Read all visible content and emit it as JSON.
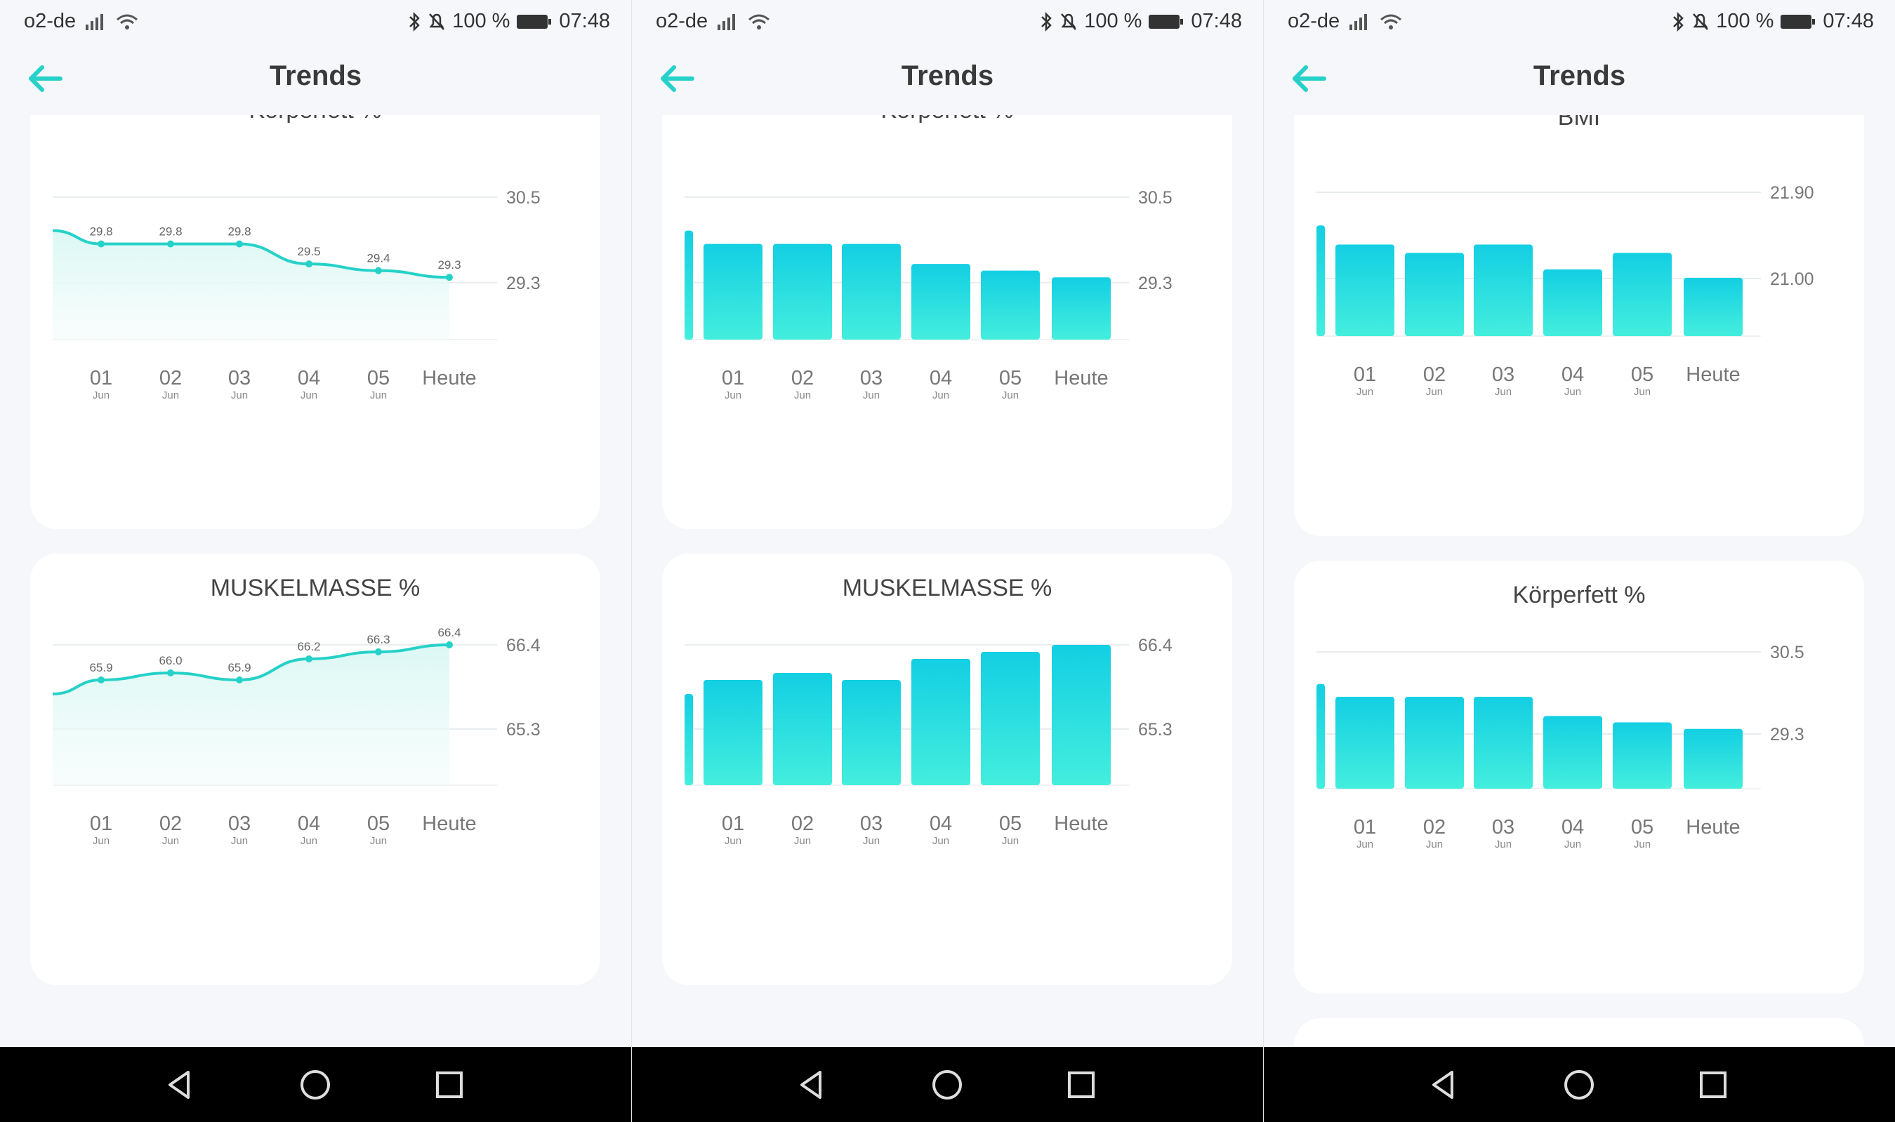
{
  "colors": {
    "accent": "#25d1c8",
    "bar_top": "#13cfe3",
    "bar_bottom": "#44eedd",
    "grid": "#e8ecef",
    "text": "#333333",
    "muted": "#888888"
  },
  "status": {
    "carrier": "o2-de",
    "battery": "100 %",
    "time_left": "07:48",
    "time_mid": "07:48",
    "time_right": "07:48"
  },
  "screens": [
    {
      "title": "Trends",
      "back_icon": "arrow-left-icon"
    },
    {
      "title": "Trends",
      "back_icon": "arrow-left-icon"
    },
    {
      "title": "Trends",
      "back_icon": "arrow-left-icon"
    }
  ],
  "nav": {
    "back": "triangle-back-icon",
    "home": "circle-home-icon",
    "recents": "square-recents-icon"
  },
  "chart_data": [
    {
      "type": "line",
      "title": "Körperfett %",
      "categories": [
        "01",
        "02",
        "03",
        "04",
        "05",
        "Heute"
      ],
      "sublabels": [
        "Jun",
        "Jun",
        "Jun",
        "Jun",
        "Jun",
        ""
      ],
      "values": [
        29.8,
        29.8,
        29.8,
        29.5,
        29.4,
        29.3
      ],
      "value_labels": [
        "29.8",
        "29.8",
        "29.8",
        "29.5",
        "29.4",
        "29.3"
      ],
      "y_ticks": [
        "30.5",
        "29.3"
      ],
      "ylim": [
        28.9,
        30.5
      ],
      "lead_value": 30.0
    },
    {
      "type": "line",
      "title": "MUSKELMASSE %",
      "categories": [
        "01",
        "02",
        "03",
        "04",
        "05",
        "Heute"
      ],
      "sublabels": [
        "Jun",
        "Jun",
        "Jun",
        "Jun",
        "Jun",
        ""
      ],
      "values": [
        65.9,
        66.0,
        65.9,
        66.2,
        66.3,
        66.4
      ],
      "value_labels": [
        "65.9",
        "66.0",
        "65.9",
        "66.2",
        "66.3",
        "66.4"
      ],
      "y_ticks": [
        "66.4",
        "65.3"
      ],
      "ylim": [
        64.9,
        66.4
      ],
      "lead_value": 65.7
    },
    {
      "type": "bar",
      "title": "Körperfett %",
      "categories": [
        "01",
        "02",
        "03",
        "04",
        "05",
        "Heute"
      ],
      "sublabels": [
        "Jun",
        "Jun",
        "Jun",
        "Jun",
        "Jun",
        ""
      ],
      "values": [
        29.8,
        29.8,
        29.8,
        29.5,
        29.4,
        29.3
      ],
      "y_ticks": [
        "30.5",
        "29.3"
      ],
      "ylim": [
        28.9,
        30.5
      ],
      "lead_value": 30.0
    },
    {
      "type": "bar",
      "title": "MUSKELMASSE %",
      "categories": [
        "01",
        "02",
        "03",
        "04",
        "05",
        "Heute"
      ],
      "sublabels": [
        "Jun",
        "Jun",
        "Jun",
        "Jun",
        "Jun",
        ""
      ],
      "values": [
        65.9,
        66.0,
        65.9,
        66.2,
        66.3,
        66.4
      ],
      "y_ticks": [
        "66.4",
        "65.3"
      ],
      "ylim": [
        64.9,
        66.4
      ],
      "lead_value": 65.7
    },
    {
      "type": "bar",
      "title": "BMI",
      "categories": [
        "01",
        "02",
        "03",
        "04",
        "05",
        "Heute"
      ],
      "sublabels": [
        "Jun",
        "Jun",
        "Jun",
        "Jun",
        "Jun",
        ""
      ],
      "values": [
        21.27,
        21.17,
        21.27,
        20.97,
        21.17,
        20.87
      ],
      "y_ticks": [
        "21.90",
        "21.00"
      ],
      "ylim": [
        20.6,
        21.9
      ],
      "lead_value": 21.5
    },
    {
      "type": "bar",
      "title": "Körperfett %",
      "categories": [
        "01",
        "02",
        "03",
        "04",
        "05",
        "Heute"
      ],
      "sublabels": [
        "Jun",
        "Jun",
        "Jun",
        "Jun",
        "Jun",
        ""
      ],
      "values": [
        29.8,
        29.8,
        29.8,
        29.5,
        29.4,
        29.3
      ],
      "y_ticks": [
        "30.5",
        "29.3"
      ],
      "ylim": [
        28.9,
        30.5
      ],
      "lead_value": 30.0
    }
  ]
}
